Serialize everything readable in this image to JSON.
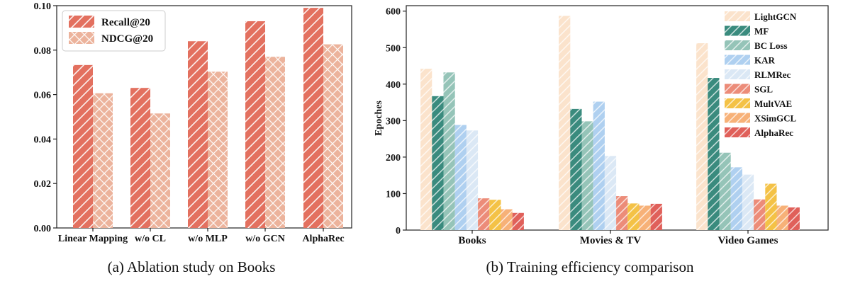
{
  "chart_data": [
    {
      "type": "bar",
      "title": "",
      "caption": "(a) Ablation study on Books",
      "xlabel": "",
      "ylabel": "",
      "ylim": [
        0,
        0.1
      ],
      "yticks": [
        0.0,
        0.02,
        0.04,
        0.06,
        0.08,
        0.1
      ],
      "ytick_labels": [
        "0.00",
        "0.02",
        "0.04",
        "0.06",
        "0.08",
        "0.10"
      ],
      "categories": [
        "Linear Mapping",
        "w/o CL",
        "w/o MLP",
        "w/o GCN",
        "AlphaRec"
      ],
      "legend_position": "top-left",
      "grid": false,
      "series": [
        {
          "name": "Recall@20",
          "color": "#e3705f",
          "hatch": "diag",
          "values": [
            0.0733,
            0.063,
            0.084,
            0.093,
            0.099
          ]
        },
        {
          "name": "NDCG@20",
          "color": "#ecb39c",
          "hatch": "cross",
          "values": [
            0.0606,
            0.0515,
            0.0703,
            0.077,
            0.0826
          ]
        }
      ]
    },
    {
      "type": "bar",
      "title": "",
      "caption": "(b) Training efficiency comparison",
      "xlabel": "",
      "ylabel": "Epoches",
      "ylim": [
        0,
        600
      ],
      "yticks": [
        0,
        100,
        200,
        300,
        400,
        500,
        600
      ],
      "ytick_labels": [
        "0",
        "100",
        "200",
        "300",
        "400",
        "500",
        "600"
      ],
      "categories": [
        "Books",
        "Movies & TV",
        "Video Games"
      ],
      "legend_position": "top-right",
      "grid": false,
      "series": [
        {
          "name": "LightGCN",
          "color": "#fbe3cc",
          "values": [
            442,
            587,
            512
          ]
        },
        {
          "name": "MF",
          "color": "#3a8b7e",
          "values": [
            367,
            332,
            417
          ]
        },
        {
          "name": "BC Loss",
          "color": "#95c4b8",
          "values": [
            432,
            298,
            212
          ]
        },
        {
          "name": "KAR",
          "color": "#afd0f0",
          "values": [
            288,
            352,
            172
          ]
        },
        {
          "name": "RLMRec",
          "color": "#dbe8f5",
          "values": [
            273,
            203,
            152
          ]
        },
        {
          "name": "SGL",
          "color": "#ec8c79",
          "values": [
            87,
            93,
            84
          ]
        },
        {
          "name": "MultVAE",
          "color": "#f4c246",
          "values": [
            83,
            73,
            127
          ]
        },
        {
          "name": "XSimGCL",
          "color": "#f7b178",
          "values": [
            57,
            67,
            67
          ]
        },
        {
          "name": "AlphaRec",
          "color": "#e0605a",
          "values": [
            47,
            72,
            62
          ]
        }
      ]
    }
  ]
}
